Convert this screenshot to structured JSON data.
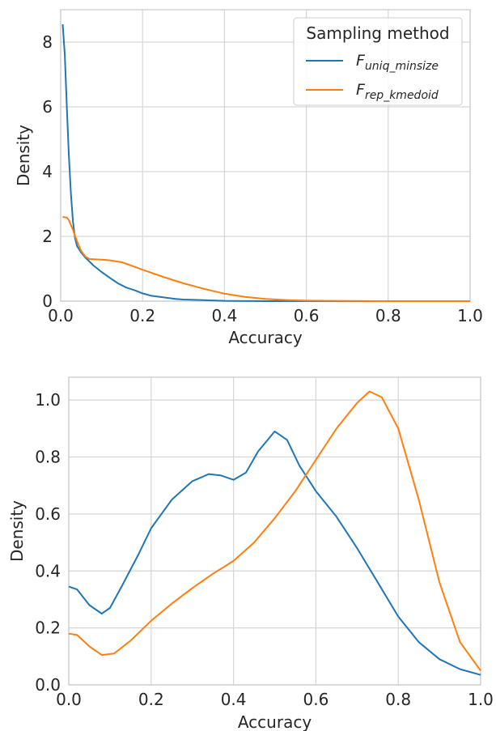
{
  "chart_data": [
    {
      "type": "line",
      "xlabel": "Accuracy",
      "ylabel": "Density",
      "xlim": [
        0,
        1
      ],
      "ylim": [
        0,
        9
      ],
      "xticks": [
        "0.0",
        "0.2",
        "0.4",
        "0.6",
        "0.8",
        "1.0"
      ],
      "yticks": [
        "0",
        "2",
        "4",
        "6",
        "8"
      ],
      "grid": true,
      "legend": {
        "title": "Sampling method",
        "placement": "top-right",
        "entries": [
          {
            "main": "F",
            "sub": "uniq_minsize",
            "color": "#1f77b4"
          },
          {
            "main": "F",
            "sub": "rep_kmedoid",
            "color": "#ff7f0e"
          }
        ]
      },
      "series": [
        {
          "name": "F uniq_minsize",
          "color": "#1f77b4",
          "points": [
            [
              0.005,
              8.55
            ],
            [
              0.01,
              7.6
            ],
            [
              0.015,
              6.0
            ],
            [
              0.02,
              4.5
            ],
            [
              0.025,
              3.3
            ],
            [
              0.03,
              2.45
            ],
            [
              0.035,
              1.95
            ],
            [
              0.04,
              1.7
            ],
            [
              0.05,
              1.5
            ],
            [
              0.06,
              1.35
            ],
            [
              0.08,
              1.1
            ],
            [
              0.1,
              0.9
            ],
            [
              0.12,
              0.72
            ],
            [
              0.14,
              0.55
            ],
            [
              0.16,
              0.42
            ],
            [
              0.18,
              0.34
            ],
            [
              0.2,
              0.24
            ],
            [
              0.22,
              0.17
            ],
            [
              0.25,
              0.12
            ],
            [
              0.28,
              0.07
            ],
            [
              0.3,
              0.05
            ],
            [
              0.35,
              0.03
            ],
            [
              0.4,
              0.01
            ],
            [
              0.5,
              0.0
            ],
            [
              1.0,
              0.0
            ]
          ]
        },
        {
          "name": "F rep_kmedoid",
          "color": "#ff7f0e",
          "points": [
            [
              0.005,
              2.6
            ],
            [
              0.015,
              2.58
            ],
            [
              0.02,
              2.5
            ],
            [
              0.03,
              2.2
            ],
            [
              0.04,
              1.85
            ],
            [
              0.05,
              1.55
            ],
            [
              0.06,
              1.38
            ],
            [
              0.07,
              1.3
            ],
            [
              0.1,
              1.28
            ],
            [
              0.12,
              1.26
            ],
            [
              0.15,
              1.2
            ],
            [
              0.2,
              0.97
            ],
            [
              0.25,
              0.75
            ],
            [
              0.3,
              0.55
            ],
            [
              0.35,
              0.38
            ],
            [
              0.4,
              0.23
            ],
            [
              0.45,
              0.13
            ],
            [
              0.5,
              0.07
            ],
            [
              0.55,
              0.035
            ],
            [
              0.6,
              0.015
            ],
            [
              0.7,
              0.005
            ],
            [
              0.8,
              0.0
            ],
            [
              1.0,
              0.0
            ]
          ]
        }
      ]
    },
    {
      "type": "line",
      "xlabel": "Accuracy",
      "ylabel": "Density",
      "xlim": [
        0,
        1
      ],
      "ylim": [
        0,
        1.08
      ],
      "xticks": [
        "0.0",
        "0.2",
        "0.4",
        "0.6",
        "0.8",
        "1.0"
      ],
      "yticks": [
        "0.0",
        "0.2",
        "0.4",
        "0.6",
        "0.8",
        "1.0"
      ],
      "grid": true,
      "series": [
        {
          "name": "F uniq_minsize",
          "color": "#1f77b4",
          "points": [
            [
              0.0,
              0.345
            ],
            [
              0.02,
              0.335
            ],
            [
              0.05,
              0.28
            ],
            [
              0.08,
              0.25
            ],
            [
              0.1,
              0.27
            ],
            [
              0.13,
              0.35
            ],
            [
              0.17,
              0.46
            ],
            [
              0.2,
              0.55
            ],
            [
              0.25,
              0.65
            ],
            [
              0.3,
              0.715
            ],
            [
              0.34,
              0.74
            ],
            [
              0.37,
              0.735
            ],
            [
              0.4,
              0.72
            ],
            [
              0.43,
              0.745
            ],
            [
              0.46,
              0.82
            ],
            [
              0.5,
              0.89
            ],
            [
              0.53,
              0.86
            ],
            [
              0.56,
              0.77
            ],
            [
              0.6,
              0.68
            ],
            [
              0.65,
              0.59
            ],
            [
              0.7,
              0.48
            ],
            [
              0.75,
              0.36
            ],
            [
              0.8,
              0.24
            ],
            [
              0.85,
              0.15
            ],
            [
              0.9,
              0.09
            ],
            [
              0.95,
              0.055
            ],
            [
              1.0,
              0.035
            ]
          ]
        },
        {
          "name": "F rep_kmedoid",
          "color": "#ff7f0e",
          "points": [
            [
              0.0,
              0.18
            ],
            [
              0.02,
              0.175
            ],
            [
              0.05,
              0.135
            ],
            [
              0.08,
              0.105
            ],
            [
              0.11,
              0.11
            ],
            [
              0.15,
              0.155
            ],
            [
              0.2,
              0.225
            ],
            [
              0.25,
              0.285
            ],
            [
              0.3,
              0.34
            ],
            [
              0.35,
              0.39
            ],
            [
              0.4,
              0.435
            ],
            [
              0.45,
              0.5
            ],
            [
              0.5,
              0.585
            ],
            [
              0.55,
              0.68
            ],
            [
              0.6,
              0.79
            ],
            [
              0.65,
              0.9
            ],
            [
              0.7,
              0.99
            ],
            [
              0.73,
              1.03
            ],
            [
              0.76,
              1.01
            ],
            [
              0.8,
              0.9
            ],
            [
              0.85,
              0.65
            ],
            [
              0.9,
              0.36
            ],
            [
              0.95,
              0.15
            ],
            [
              1.0,
              0.05
            ]
          ]
        }
      ]
    }
  ]
}
